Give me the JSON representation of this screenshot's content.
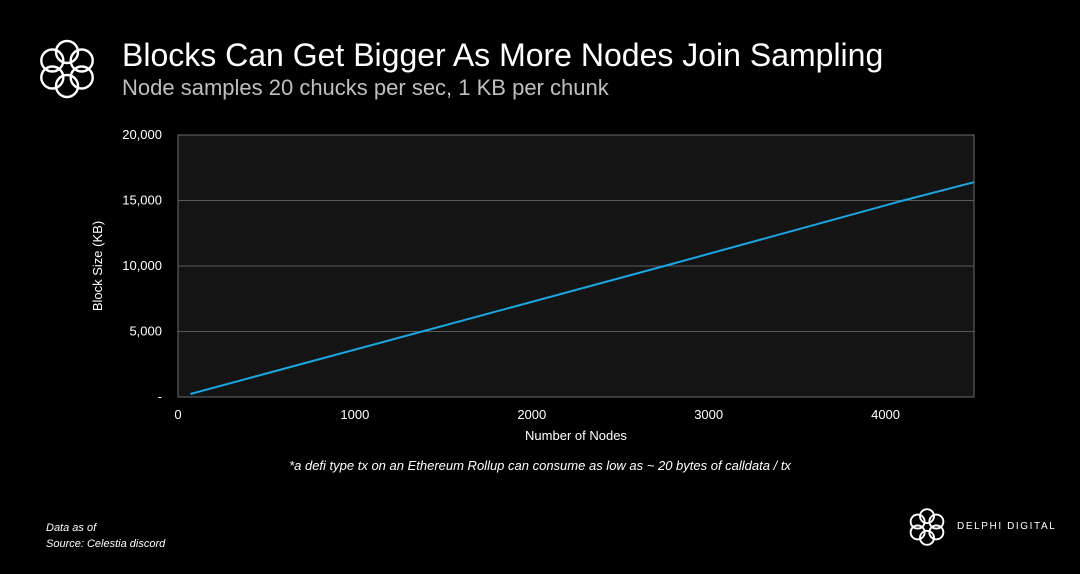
{
  "header": {
    "title": "Blocks Can Get Bigger As More Nodes Join Sampling",
    "subtitle": "Node samples 20 chucks per sec, 1 KB per chunk"
  },
  "chart_data": {
    "type": "line",
    "title": "Blocks Can Get Bigger As More Nodes Join Sampling",
    "subtitle": "Node samples 20 chucks per sec, 1 KB per chunk",
    "xlabel": "Number of Nodes",
    "ylabel": "Block Size (KB)",
    "xlim": [
      0,
      4500
    ],
    "ylim": [
      0,
      20000
    ],
    "x_ticks": [
      0,
      1000,
      2000,
      3000,
      4000
    ],
    "x_tick_labels": [
      "0",
      "1000",
      "2000",
      "3000",
      "4000"
    ],
    "y_ticks": [
      0,
      5000,
      10000,
      15000,
      20000
    ],
    "y_tick_labels": [
      "-",
      "5,000",
      "10,000",
      "15,000",
      "20,000"
    ],
    "grid": true,
    "series": [
      {
        "color": "#1aa6e0",
        "points": [
          [
            70,
            230
          ],
          [
            1380,
            5000
          ],
          [
            2750,
            10000
          ],
          [
            4100,
            15000
          ],
          [
            4500,
            16400
          ]
        ]
      }
    ],
    "plot_background": "#141414",
    "grid_color": "#5a5a5a"
  },
  "footnote": "*a defi type tx on an Ethereum Rollup can consume as low as ~ 20 bytes of calldata / tx",
  "footer": {
    "data_as_of": "Data as of",
    "source": "Source: Celestia discord",
    "brand": "DELPHI DIGITAL"
  },
  "icons": {
    "top_logo": "delphi-flower-logo-icon",
    "bottom_logo": "delphi-flower-logo-icon"
  }
}
